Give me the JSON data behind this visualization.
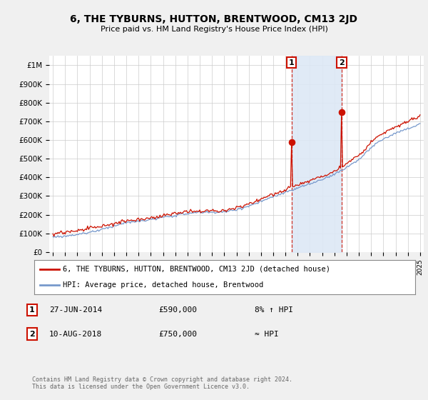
{
  "title": "6, THE TYBURNS, HUTTON, BRENTWOOD, CM13 2JD",
  "subtitle": "Price paid vs. HM Land Registry's House Price Index (HPI)",
  "ylabel_ticks": [
    "£0",
    "£100K",
    "£200K",
    "£300K",
    "£400K",
    "£500K",
    "£600K",
    "£700K",
    "£800K",
    "£900K",
    "£1M"
  ],
  "ytick_vals": [
    0,
    100000,
    200000,
    300000,
    400000,
    500000,
    600000,
    700000,
    800000,
    900000,
    1000000
  ],
  "ylim": [
    0,
    1050000
  ],
  "hpi_color": "#7799cc",
  "price_color": "#cc1100",
  "shade_color": "#dde8f5",
  "legend_label_price": "6, THE TYBURNS, HUTTON, BRENTWOOD, CM13 2JD (detached house)",
  "legend_label_hpi": "HPI: Average price, detached house, Brentwood",
  "sale1_date": "27-JUN-2014",
  "sale1_price": "£590,000",
  "sale1_note": "8% ↑ HPI",
  "sale2_date": "10-AUG-2018",
  "sale2_price": "£750,000",
  "sale2_note": "≈ HPI",
  "footer": "Contains HM Land Registry data © Crown copyright and database right 2024.\nThis data is licensed under the Open Government Licence v3.0.",
  "background_color": "#f0f0f0",
  "plot_bg_color": "#ffffff",
  "grid_color": "#cccccc",
  "sale1_t": 2014.5,
  "sale1_v": 590000,
  "sale2_t": 2018.6,
  "sale2_v": 750000
}
